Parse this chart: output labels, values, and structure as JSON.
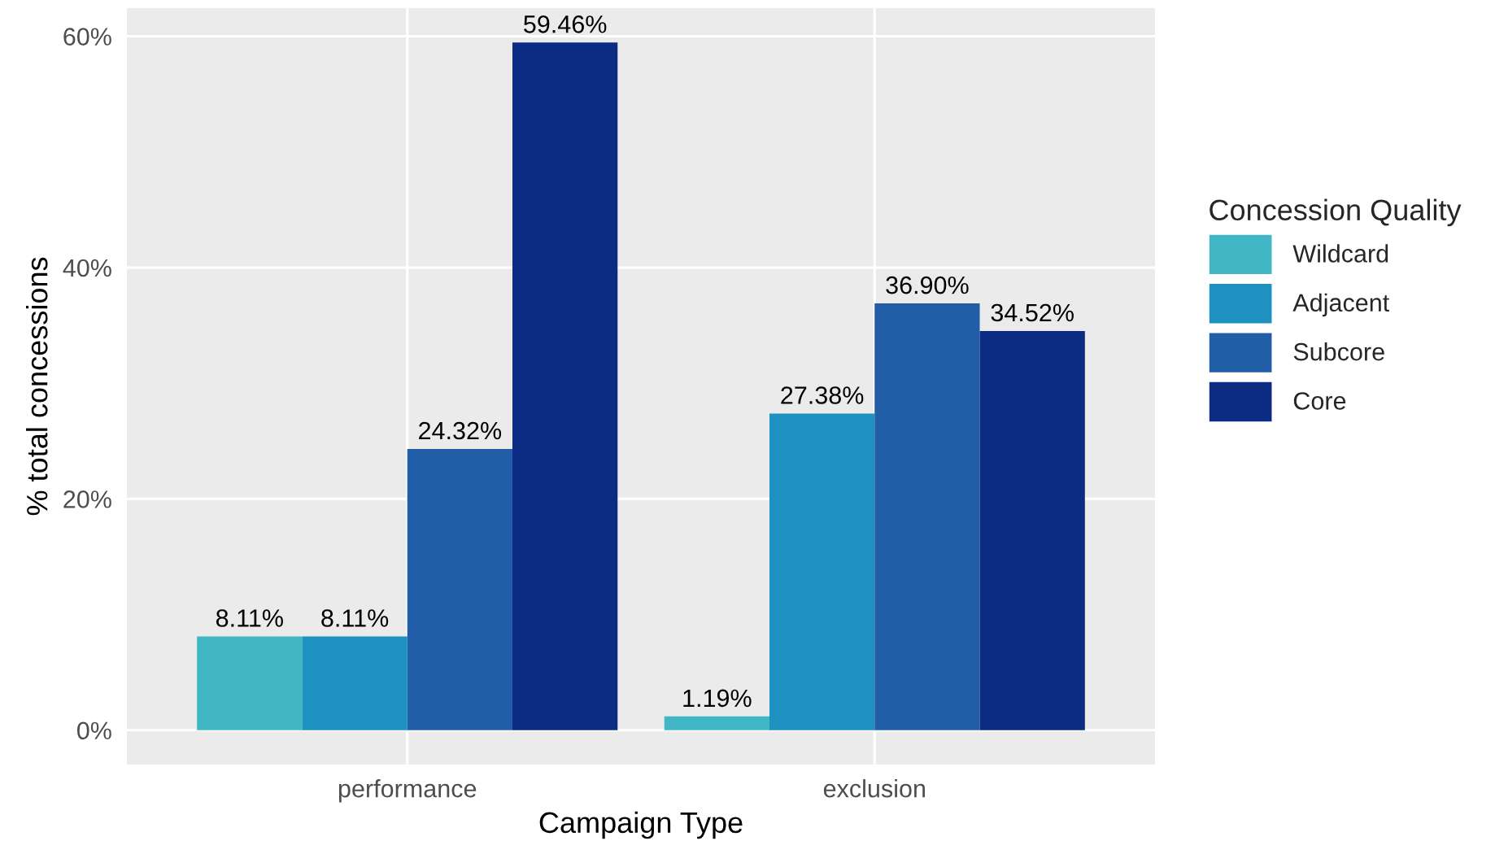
{
  "chart_data": {
    "type": "bar",
    "xlabel": "Campaign Type",
    "ylabel": "% total concessions",
    "legend_title": "Concession Quality",
    "categories": [
      "performance",
      "exclusion"
    ],
    "series": [
      {
        "name": "Wildcard",
        "color": "#41b6c4",
        "values": [
          8.11,
          1.19
        ],
        "value_labels": [
          "8.11%",
          "1.19%"
        ]
      },
      {
        "name": "Adjacent",
        "color": "#1d91c0",
        "values": [
          8.11,
          27.38
        ],
        "value_labels": [
          "8.11%",
          "27.38%"
        ]
      },
      {
        "name": "Subcore",
        "color": "#225ea8",
        "values": [
          24.32,
          36.9
        ],
        "value_labels": [
          "24.32%",
          "36.90%"
        ]
      },
      {
        "name": "Core",
        "color": "#0c2c84",
        "values": [
          59.46,
          34.52
        ],
        "value_labels": [
          "59.46%",
          "34.52%"
        ]
      }
    ],
    "ylim": [
      -2.97,
      62.43
    ],
    "yticks": [
      {
        "value": 0,
        "label": "0%"
      },
      {
        "value": 20,
        "label": "20%"
      },
      {
        "value": 40,
        "label": "40%"
      },
      {
        "value": 60,
        "label": "60%"
      }
    ],
    "grid": true,
    "legend": "right"
  }
}
